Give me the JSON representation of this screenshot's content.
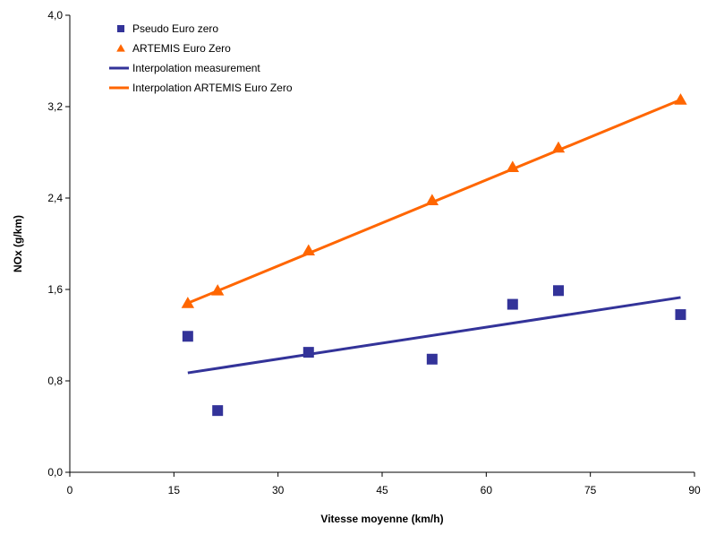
{
  "chart_data": {
    "type": "scatter",
    "title": "",
    "xlabel": "Vitesse moyenne (km/h)",
    "ylabel": "NOx (g/km)",
    "xlim": [
      0,
      90
    ],
    "ylim": [
      0,
      4
    ],
    "x_ticks": [
      "0",
      "15",
      "30",
      "45",
      "60",
      "75",
      "90"
    ],
    "y_ticks": [
      "0,0",
      "0,8",
      "1,6",
      "2,4",
      "3,2",
      "4,0"
    ],
    "grid": false,
    "legend_position": "top-left",
    "series": [
      {
        "name": "Pseudo Euro zero",
        "kind": "scatter",
        "marker": "square",
        "color": "#333399",
        "x": [
          17.0,
          21.3,
          34.4,
          52.2,
          63.8,
          70.4,
          88.0
        ],
        "y": [
          1.19,
          0.54,
          1.05,
          0.99,
          1.47,
          1.59,
          1.38
        ]
      },
      {
        "name": "ARTEMIS Euro Zero",
        "kind": "scatter",
        "marker": "triangle",
        "color": "#ff6600",
        "x": [
          17.0,
          21.3,
          34.4,
          52.2,
          63.8,
          70.4,
          88.0
        ],
        "y": [
          1.48,
          1.59,
          1.94,
          2.38,
          2.67,
          2.84,
          3.26
        ]
      },
      {
        "name": "Interpolation measurement",
        "kind": "line",
        "color": "#333399",
        "x": [
          17.0,
          88.0
        ],
        "y": [
          0.87,
          1.53
        ]
      },
      {
        "name": "Interpolation ARTEMIS Euro Zero",
        "kind": "line",
        "color": "#ff6600",
        "x": [
          17.0,
          88.0
        ],
        "y": [
          1.48,
          3.26
        ]
      }
    ]
  }
}
